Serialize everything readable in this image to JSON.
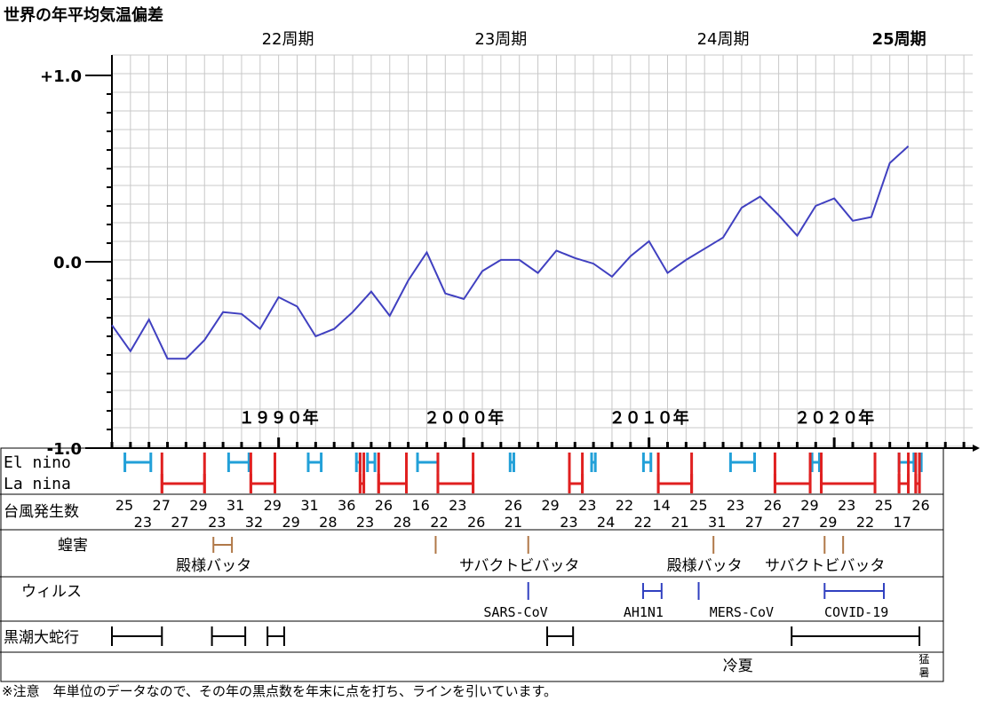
{
  "colors": {
    "temp_line": "#4040c0",
    "el_nino": "#22a0d8",
    "la_nina": "#e02020",
    "locust": "#b07848",
    "virus": "#3040c0",
    "kuroshio": "#000000",
    "grid": "#c8c8c8"
  },
  "chart_data": {
    "type": "line",
    "title": "世界の年平均気温偏差",
    "xlabel": "",
    "ylabel": "",
    "ylim": [
      -1.0,
      1.0
    ],
    "xlim": [
      1980,
      2027
    ],
    "y_tick_labels": [
      {
        "v": 1.0,
        "label": "+1.0"
      },
      {
        "v": 0.0,
        "label": "0.0"
      },
      {
        "v": -1.0,
        "label": "-1.0"
      }
    ],
    "cycle_labels": [
      {
        "year": 1990.5,
        "label": "22周期",
        "bold": false
      },
      {
        "year": 2002.0,
        "label": "23周期",
        "bold": false
      },
      {
        "year": 2014.0,
        "label": "24周期",
        "bold": false
      },
      {
        "year": 2023.5,
        "label": "25周期",
        "bold": true
      }
    ],
    "decade_labels": [
      {
        "year": 1990,
        "label": "１９９０年"
      },
      {
        "year": 2000,
        "label": "２０００年"
      },
      {
        "year": 2010,
        "label": "２０１０年"
      },
      {
        "year": 2020,
        "label": "２０２０年"
      }
    ],
    "series": [
      {
        "x": [
          1981,
          1982,
          1983,
          1984,
          1985,
          1986,
          1987,
          1988,
          1989,
          1990,
          1991,
          1992,
          1993,
          1994,
          1995,
          1996,
          1997,
          1998,
          1999,
          2000,
          2001,
          2002,
          2003,
          2004,
          2005,
          2006,
          2007,
          2008,
          2009,
          2010,
          2011,
          2012,
          2013,
          2014,
          2015,
          2016,
          2017,
          2018,
          2019,
          2020,
          2021,
          2022,
          2023,
          2024
        ],
        "values": [
          -0.34,
          -0.48,
          -0.31,
          -0.52,
          -0.52,
          -0.42,
          -0.27,
          -0.28,
          -0.36,
          -0.19,
          -0.24,
          -0.4,
          -0.36,
          -0.27,
          -0.16,
          -0.29,
          -0.1,
          0.05,
          -0.17,
          -0.2,
          -0.05,
          0.01,
          0.01,
          -0.06,
          0.06,
          0.02,
          -0.01,
          -0.08,
          0.03,
          0.11,
          -0.06,
          0.01,
          0.07,
          0.13,
          0.29,
          0.35,
          0.25,
          0.14,
          0.3,
          0.34,
          0.22,
          0.24,
          0.53,
          0.62
        ]
      }
    ]
  },
  "rows": {
    "el_nino": {
      "label": "El nino",
      "periods": [
        [
          1981.7,
          1983.1
        ],
        [
          1987.3,
          1988.4
        ],
        [
          1991.6,
          1992.3
        ],
        [
          1994.2,
          1994.4
        ],
        [
          1994.8,
          1995.2
        ],
        [
          1997.5,
          1998.6
        ],
        [
          2002.5,
          2002.7
        ],
        [
          2006.9,
          2007.1
        ],
        [
          2009.7,
          2010.1
        ],
        [
          2014.4,
          2015.7
        ],
        [
          2018.8,
          2019.2
        ],
        [
          2023.5,
          2024.3
        ],
        [
          2024.6,
          2024.7
        ]
      ]
    },
    "la_nina": {
      "label": "La nina",
      "periods": [
        [
          1983.7,
          1986.0
        ],
        [
          1988.5,
          1989.8
        ],
        [
          1994.4,
          1994.6
        ],
        [
          1995.4,
          1996.9
        ],
        [
          1998.6,
          2000.5
        ],
        [
          2005.7,
          2006.4
        ],
        [
          2010.5,
          2012.3
        ],
        [
          2016.8,
          2018.7
        ],
        [
          2019.3,
          2022.2
        ],
        [
          2023.5,
          2024.0
        ],
        [
          2024.4,
          2024.6
        ]
      ]
    },
    "typhoon": {
      "label": "台風発生数",
      "top": [
        {
          "year": 1981,
          "v": "25"
        },
        {
          "year": 1983,
          "v": "27"
        },
        {
          "year": 1985,
          "v": "29"
        },
        {
          "year": 1987,
          "v": "31"
        },
        {
          "year": 1989,
          "v": "29"
        },
        {
          "year": 1991,
          "v": "31"
        },
        {
          "year": 1993,
          "v": "36"
        },
        {
          "year": 1995,
          "v": "26"
        },
        {
          "year": 1997,
          "v": "16"
        },
        {
          "year": 1999,
          "v": "23"
        },
        {
          "year": 2002,
          "v": "26"
        },
        {
          "year": 2004,
          "v": "29"
        },
        {
          "year": 2006,
          "v": "23"
        },
        {
          "year": 2008,
          "v": "22"
        },
        {
          "year": 2010,
          "v": "14"
        },
        {
          "year": 2012,
          "v": "25"
        },
        {
          "year": 2014,
          "v": "23"
        },
        {
          "year": 2016,
          "v": "26"
        },
        {
          "year": 2018,
          "v": "29"
        },
        {
          "year": 2020,
          "v": "23"
        },
        {
          "year": 2022,
          "v": "25"
        },
        {
          "year": 2024,
          "v": "26"
        }
      ],
      "bottom": [
        {
          "year": 1982,
          "v": "23"
        },
        {
          "year": 1984,
          "v": "27"
        },
        {
          "year": 1986,
          "v": "23"
        },
        {
          "year": 1988,
          "v": "32"
        },
        {
          "year": 1990,
          "v": "29"
        },
        {
          "year": 1992,
          "v": "28"
        },
        {
          "year": 1994,
          "v": "23"
        },
        {
          "year": 1996,
          "v": "28"
        },
        {
          "year": 1998,
          "v": "22"
        },
        {
          "year": 2000,
          "v": "26"
        },
        {
          "year": 2002,
          "v": "21"
        },
        {
          "year": 2005,
          "v": "23"
        },
        {
          "year": 2007,
          "v": "24"
        },
        {
          "year": 2009,
          "v": "22"
        },
        {
          "year": 2011,
          "v": "21"
        },
        {
          "year": 2013,
          "v": "31"
        },
        {
          "year": 2015,
          "v": "27"
        },
        {
          "year": 2017,
          "v": "27"
        },
        {
          "year": 2019,
          "v": "29"
        },
        {
          "year": 2021,
          "v": "22"
        },
        {
          "year": 2023,
          "v": "17"
        }
      ]
    },
    "locust": {
      "label": "蝗害",
      "marks": [
        [
          1986.0,
          1987.0
        ],
        [
          1998.0,
          1998.0
        ],
        [
          2003.0,
          2003.0
        ],
        [
          2013.0,
          2013.0
        ],
        [
          2019.0,
          2019.0
        ],
        [
          2020.0,
          2020.0
        ]
      ],
      "labels": [
        {
          "year": 1986.5,
          "text": "殿様バッタ"
        },
        {
          "year": 2003.0,
          "text": "サバクトビバッタ"
        },
        {
          "year": 2013.0,
          "text": "殿様バッタ"
        },
        {
          "year": 2019.5,
          "text": "サバクトビバッタ"
        }
      ]
    },
    "virus": {
      "label": "ウィルス",
      "marks": [
        [
          2003.0,
          2003.0
        ],
        [
          2009.2,
          2010.2
        ],
        [
          2012.2,
          2012.2
        ],
        [
          2019.0,
          2022.2
        ]
      ],
      "labels": [
        {
          "year": 2002.8,
          "text": "SARS-CoV"
        },
        {
          "year": 2009.7,
          "text": "AH1N1"
        },
        {
          "year": 2015.0,
          "text": "MERS-CoV"
        },
        {
          "year": 2021.2,
          "text": "COVID-19"
        }
      ]
    },
    "kuroshio": {
      "label": "黒潮大蛇行",
      "periods": [
        [
          1981.0,
          1983.7
        ],
        [
          1986.4,
          1988.2
        ],
        [
          1989.4,
          1990.3
        ],
        [
          2004.5,
          2005.9
        ],
        [
          2017.7,
          2024.6
        ]
      ]
    },
    "summer": {
      "cool_label": "冷夏",
      "cool_year": 2014.8,
      "hot_label_1": "猛",
      "hot_label_2": "暑",
      "hot_year": 2024.0
    }
  },
  "footnote": "※注意　年単位のデータなので、その年の黒点数を年末に点を打ち、ラインを引いています。"
}
